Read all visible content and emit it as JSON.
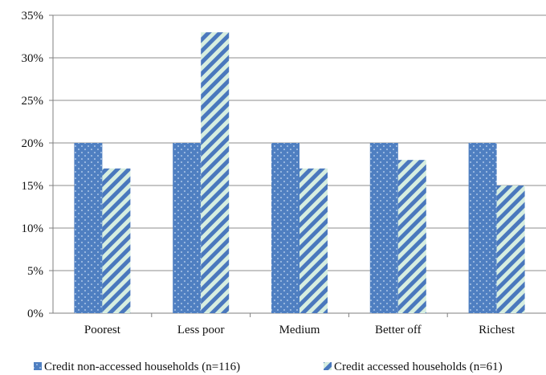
{
  "chart_data": {
    "type": "bar",
    "categories": [
      "Poorest",
      "Less poor",
      "Medium",
      "Better off",
      "Richest"
    ],
    "series": [
      {
        "name": "Credit non-accessed households  (n=116)",
        "values": [
          20,
          20,
          20,
          20,
          20
        ],
        "color": "#4f7fc1",
        "pattern": "dotted"
      },
      {
        "name": "Credit accessed households (n=61)",
        "values": [
          17,
          33,
          17,
          18,
          15
        ],
        "color": "#4a78bd",
        "pattern": "diagonal-stripes"
      }
    ],
    "ylim": [
      0,
      35
    ],
    "yticks": [
      0,
      5,
      10,
      15,
      20,
      25,
      30,
      35
    ],
    "ytick_labels": [
      "0%",
      "5%",
      "10%",
      "15%",
      "20%",
      "25%",
      "30%",
      "35%"
    ],
    "grid": true,
    "legend": "bottom",
    "title": "",
    "xlabel": "",
    "ylabel": ""
  }
}
